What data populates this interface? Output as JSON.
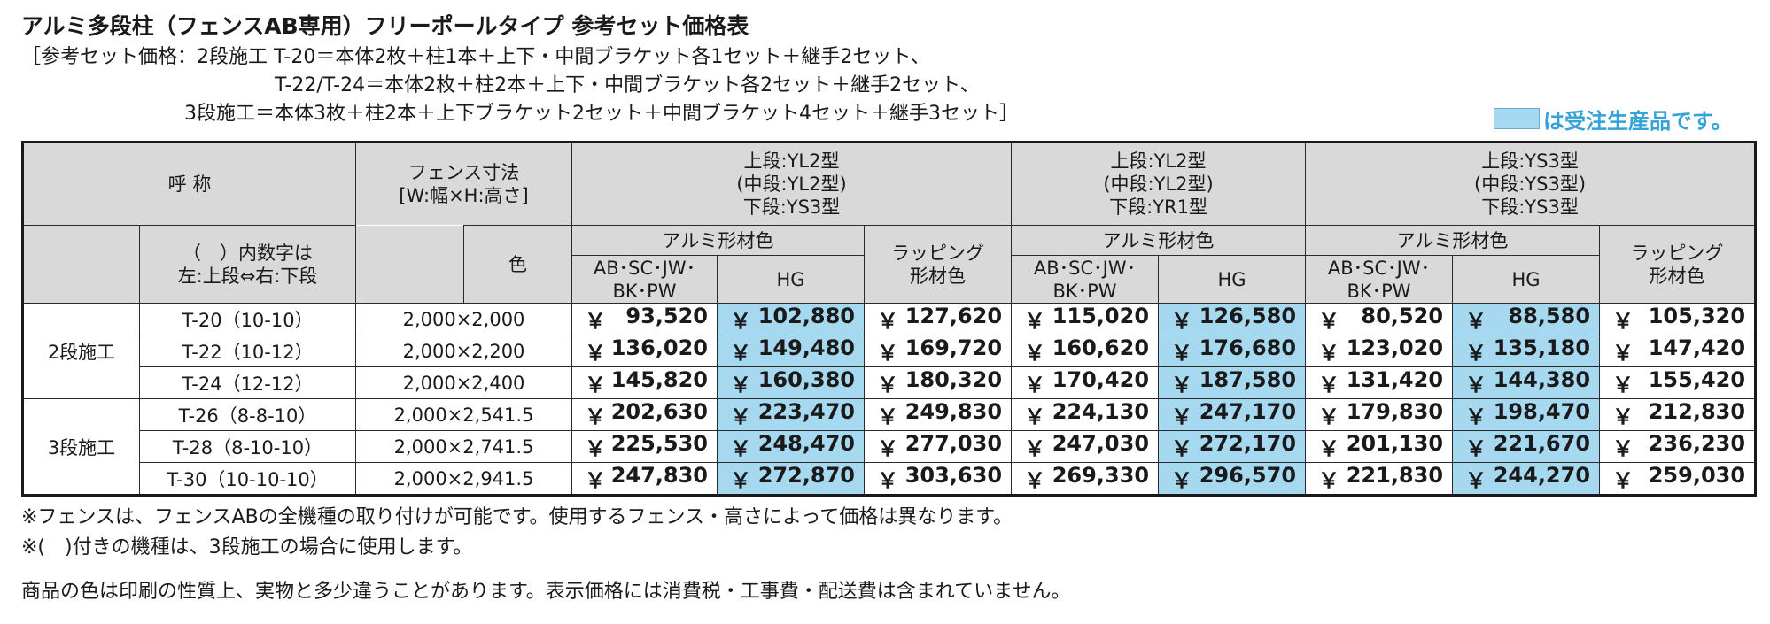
{
  "title": "アルミ多段柱（フェンスAB専用）フリーポールタイプ 参考セット価格表",
  "notes": [
    "［参考セット価格：2段施工 T-20＝本体2枚＋柱1本＋上下・中間ブラケット各1セット＋継手2セット、",
    "T-22/T-24＝本体2枚＋柱2本＋上下・中間ブラケット各2セット＋継手2セット、",
    "3段施工＝本体3枚＋柱2本＋上下ブラケット2セット＋中間ブラケット4セット＋継手3セット］"
  ],
  "legend_text": "は受注生産品です。",
  "colors": {
    "hg_fill": "#a6d9f0",
    "legend_text": "#35a2d9",
    "header_fill": "#d9d9d9"
  },
  "header": {
    "name": "呼 称",
    "paren_note_1": "（　）内数字は",
    "paren_note_2": "左:上段⇔右:下段",
    "size_1": "フェンス寸法",
    "size_2": "[W:幅×H:高さ]",
    "color": "色",
    "groups": [
      {
        "l1": "上段:YL2型",
        "l2": "(中段:YL2型)",
        "l3": "下段:YS3型"
      },
      {
        "l1": "上段:YL2型",
        "l2": "(中段:YL2型)",
        "l3": "下段:YR1型"
      },
      {
        "l1": "上段:YS3型",
        "l2": "(中段:YS3型)",
        "l3": "下段:YS3型"
      }
    ],
    "alumi": "アルミ形材色",
    "std_1": "AB･SC･JW･",
    "std_2": "BK･PW",
    "hg": "HG",
    "wrap_1": "ラッピング",
    "wrap_2": "形材色"
  },
  "yen": "￥",
  "sections": [
    {
      "label": "2段施工",
      "rows": [
        {
          "model": "T-20（10-10）",
          "size": "2,000×2,000",
          "prices": [
            "93,520",
            "102,880",
            "127,620",
            "115,020",
            "126,580",
            "80,520",
            "88,580",
            "105,320"
          ]
        },
        {
          "model": "T-22（10-12）",
          "size": "2,000×2,200",
          "prices": [
            "136,020",
            "149,480",
            "169,720",
            "160,620",
            "176,680",
            "123,020",
            "135,180",
            "147,420"
          ]
        },
        {
          "model": "T-24（12-12）",
          "size": "2,000×2,400",
          "prices": [
            "145,820",
            "160,380",
            "180,320",
            "170,420",
            "187,580",
            "131,420",
            "144,380",
            "155,420"
          ]
        }
      ]
    },
    {
      "label": "3段施工",
      "rows": [
        {
          "model": "T-26（8-8-10）",
          "size": "2,000×2,541.5",
          "prices": [
            "202,630",
            "223,470",
            "249,830",
            "224,130",
            "247,170",
            "179,830",
            "198,470",
            "212,830"
          ]
        },
        {
          "model": "T-28（8-10-10）",
          "size": "2,000×2,741.5",
          "prices": [
            "225,530",
            "248,470",
            "277,030",
            "247,030",
            "272,170",
            "201,130",
            "221,670",
            "236,230"
          ]
        },
        {
          "model": "T-30（10-10-10）",
          "size": "2,000×2,941.5",
          "prices": [
            "247,830",
            "272,870",
            "303,630",
            "269,330",
            "296,570",
            "221,830",
            "244,270",
            "259,030"
          ]
        }
      ]
    }
  ],
  "footnotes": [
    "※フェンスは、フェンスABの全機種の取り付けが可能です。使用するフェンス・高さによって価格は異なります。",
    "※(　)付きの機種は、3段施工の場合に使用します。",
    "商品の色は印刷の性質上、実物と多少違うことがあります。表示価格には消費税・工事費・配送費は含まれていません。"
  ]
}
